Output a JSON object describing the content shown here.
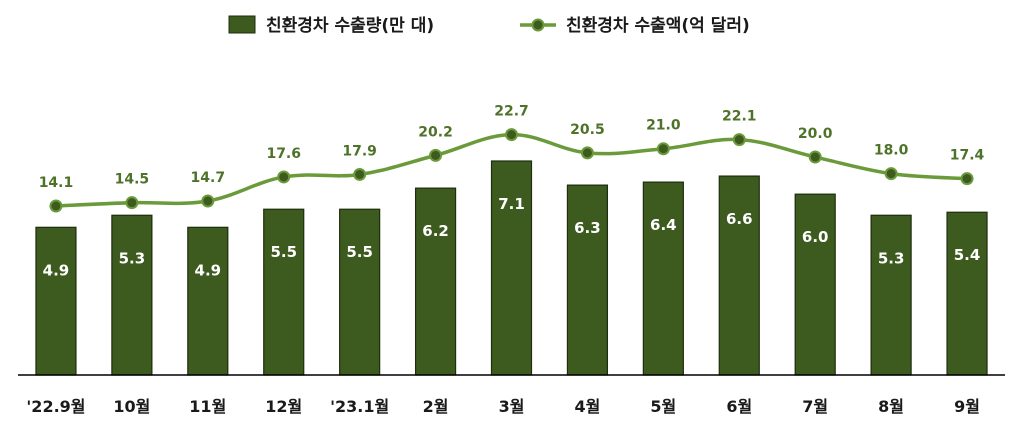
{
  "chart_data": {
    "type": "bar",
    "categories": [
      "'22.9월",
      "10월",
      "11월",
      "12월",
      "'23.1월",
      "2월",
      "3월",
      "4월",
      "5월",
      "6월",
      "7월",
      "8월",
      "9월"
    ],
    "series": [
      {
        "name": "친환경차 수출량(만 대)",
        "type": "bar",
        "values": [
          4.9,
          5.3,
          4.9,
          5.5,
          5.5,
          6.2,
          7.1,
          6.3,
          6.4,
          6.6,
          6.0,
          5.3,
          5.4
        ],
        "labels": [
          "4.9",
          "5.3",
          "4.9",
          "5.5",
          "5.5",
          "6.2",
          "7.1",
          "6.3",
          "6.4",
          "6.6",
          "6.0",
          "5.3",
          "5.4"
        ]
      },
      {
        "name": "친환경차 수출액(억 달러)",
        "type": "line",
        "smooth": true,
        "values": [
          14.1,
          14.5,
          14.7,
          17.6,
          17.9,
          20.2,
          22.7,
          20.5,
          21.0,
          22.1,
          20.0,
          18.0,
          17.4
        ],
        "labels": [
          "14.1",
          "14.5",
          "14.7",
          "17.6",
          "17.9",
          "20.2",
          "22.7",
          "20.5",
          "21.0",
          "22.1",
          "20.0",
          "18.0",
          "17.4"
        ]
      }
    ],
    "legend_position": "top",
    "grid": false,
    "colors": {
      "bar_fill": "#3d5a1f",
      "bar_stroke": "#1e2e0e",
      "line": "#6a9a3a",
      "marker_fill": "#3d5a1f",
      "line_label": "#4e7328",
      "bar_label": "#ffffff",
      "axis": "#000000"
    }
  }
}
